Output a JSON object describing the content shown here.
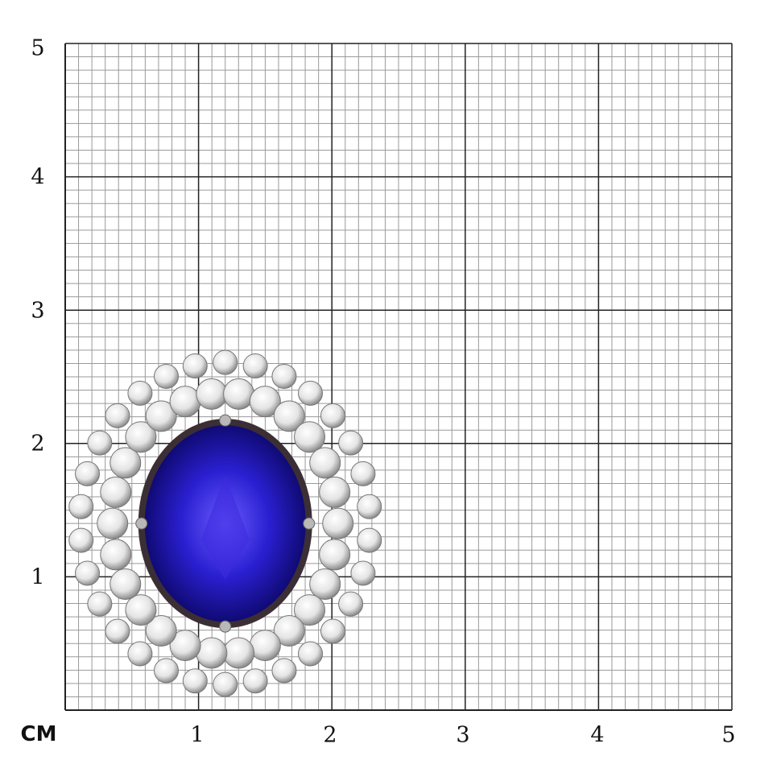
{
  "scale": {
    "unit_label": "CM",
    "x_ticks": [
      "1",
      "2",
      "3",
      "4",
      "5"
    ],
    "y_ticks": [
      "1",
      "2",
      "3",
      "4",
      "5"
    ],
    "range_cm": [
      0,
      5
    ],
    "minor_divisions_per_cm": 10
  },
  "colors": {
    "major_grid": "#222222",
    "minor_grid": "#9a9a9a",
    "gemstone": "#2a1fd0",
    "gemstone_dark": "#0a0660",
    "diamond": "#e4e4e4",
    "metal": "#b8b8b8"
  },
  "jewel": {
    "icon": "tanzanite-diamond-halo-ring-photo",
    "center_cm": [
      1.2,
      1.4
    ],
    "size_cm": [
      2.4,
      2.7
    ]
  }
}
